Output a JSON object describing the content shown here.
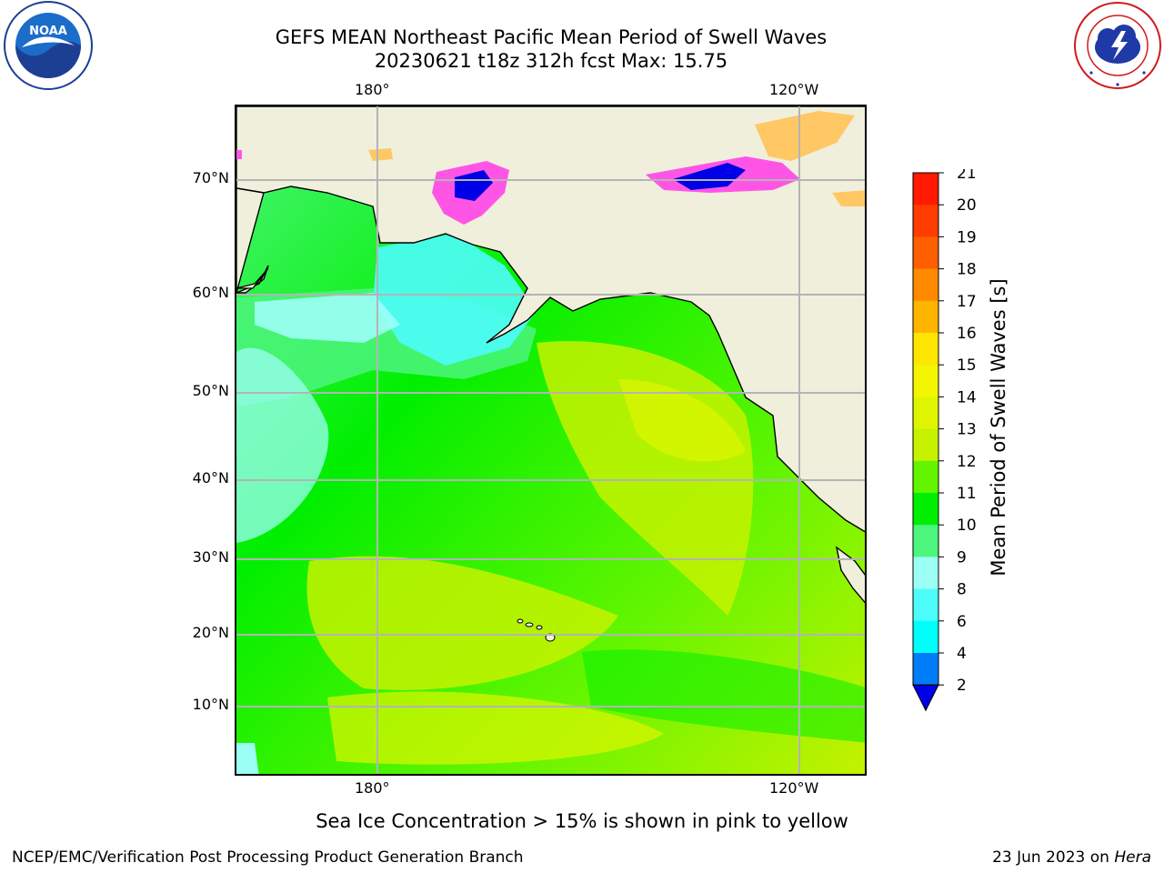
{
  "header": {
    "title_line1": "GEFS MEAN Northeast Pacific Mean Period of Swell Waves",
    "title_line2": "20230621 t18z 312h fcst   Max: 15.75"
  },
  "axes": {
    "lon_labels": [
      "180°",
      "120°W"
    ],
    "lat_labels": [
      "70°N",
      "60°N",
      "50°N",
      "40°N",
      "30°N",
      "20°N",
      "10°N"
    ]
  },
  "colorbar": {
    "title": "Mean Period of Swell Waves [s]",
    "ticks": [
      "21",
      "20",
      "19",
      "18",
      "17",
      "16",
      "15",
      "14",
      "13",
      "12",
      "11",
      "10",
      "9",
      "8",
      "6",
      "4",
      "2"
    ],
    "colors": [
      "#ff1a00",
      "#ff3c00",
      "#ff5f00",
      "#ff8a00",
      "#ffb400",
      "#ffe600",
      "#f4f500",
      "#dff500",
      "#c6f200",
      "#63f500",
      "#00ef00",
      "#4cf57c",
      "#9cfff6",
      "#4cfdfb",
      "#00fefb",
      "#007cf9"
    ],
    "under_color": "#0000e6"
  },
  "map_colors": {
    "land": "#efefdc",
    "ocean_period_9": "#9cfff6",
    "ocean_period_10": "#4cf57c",
    "ocean_period_11": "#00ef00",
    "ocean_period_12": "#63f500",
    "ocean_period_13": "#c6f200",
    "ocean_period_14": "#dff500",
    "sea_ice_low": "#ff55e6",
    "sea_ice_high": "#ffc864",
    "gridline": "#b4b4b4"
  },
  "note": "Sea Ice Concentration > 15% is shown in pink to yellow",
  "footer": {
    "left": "NCEP/EMC/Verification Post Processing Product Generation Branch",
    "right_prefix": "23 Jun 2023 on ",
    "right_host": "Hera"
  },
  "logos": {
    "noaa_text": "NOAA",
    "nws_ring_text": "NATIONAL WEATHER SERVICE"
  }
}
